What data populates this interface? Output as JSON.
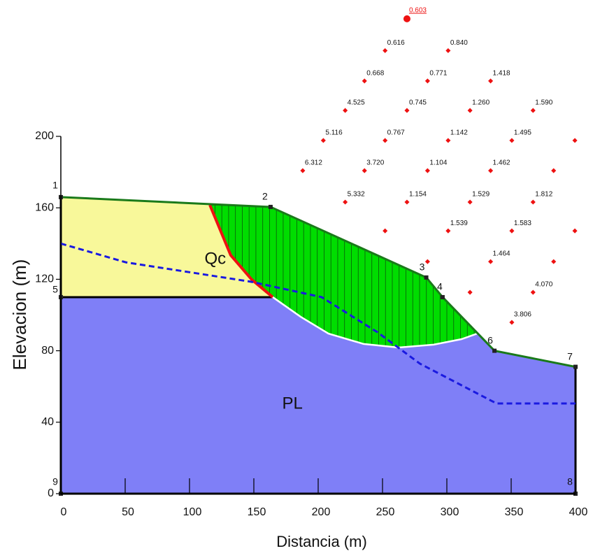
{
  "chart_data": {
    "type": "slope",
    "xlabel": "Distancia (m)",
    "ylabel": "Elevacion (m)",
    "xlim": [
      0,
      400
    ],
    "ylim": [
      0,
      200
    ],
    "xticks": [
      0,
      50,
      100,
      150,
      200,
      250,
      300,
      350,
      400
    ],
    "yticks": [
      0,
      40,
      80,
      120,
      160,
      200
    ],
    "materials": [
      {
        "name": "PL",
        "color": "#7f7ff7",
        "label_at": [
          180,
          50
        ],
        "polygon": [
          [
            0,
            0
          ],
          [
            0,
            166
          ],
          [
            163,
            160.5
          ],
          [
            284,
            121
          ],
          [
            296.7,
            110
          ],
          [
            337,
            80
          ],
          [
            400,
            71
          ],
          [
            400,
            0
          ]
        ]
      },
      {
        "name": "Qc",
        "color": "#f8f89a",
        "label_at": [
          120,
          131
        ],
        "polygon": [
          [
            0,
            110
          ],
          [
            0,
            166
          ],
          [
            163,
            160.5
          ],
          [
            165,
            110
          ]
        ]
      }
    ],
    "vertices": [
      {
        "label": "1",
        "x": 0,
        "y": 166
      },
      {
        "label": "2",
        "x": 163,
        "y": 160.5
      },
      {
        "label": "3",
        "x": 284,
        "y": 121
      },
      {
        "label": "4",
        "x": 296.7,
        "y": 110
      },
      {
        "label": "5",
        "x": 0,
        "y": 110
      },
      {
        "label": "6",
        "x": 337,
        "y": 80
      },
      {
        "label": "7",
        "x": 400,
        "y": 71
      },
      {
        "label": "8",
        "x": 400,
        "y": 0
      },
      {
        "label": "9",
        "x": 0,
        "y": 0
      }
    ],
    "failure_color": "#00dd00",
    "slip_surface": {
      "x": [
        115.8,
        132,
        148.4,
        164.7,
        186.4,
        208,
        235.3,
        262.5,
        289.7,
        311.4,
        324
      ],
      "y": [
        161.6,
        133.5,
        119.8,
        110,
        99,
        89.6,
        83.8,
        81.8,
        83.4,
        86.5,
        89.7
      ]
    },
    "slip_color": "#ee1111",
    "water_table": {
      "color": "#1a1ae0",
      "x": [
        0,
        50.5,
        148,
        202.7,
        246,
        279,
        338.6,
        400
      ],
      "y": [
        140,
        129.5,
        118.6,
        110,
        90.4,
        72.8,
        50.5,
        50.5
      ]
    },
    "minimum": {
      "x": 269,
      "y": 265.8,
      "label": "0.603"
    },
    "grid_color": "#ee1111",
    "grid_centers": [
      {
        "x": 252,
        "y": 248,
        "label": "0.616"
      },
      {
        "x": 301,
        "y": 248,
        "label": "0.840"
      },
      {
        "x": 236,
        "y": 231,
        "label": "0.668"
      },
      {
        "x": 285,
        "y": 231,
        "label": "0.771"
      },
      {
        "x": 334,
        "y": 231,
        "label": "1.418"
      },
      {
        "x": 221,
        "y": 214.5,
        "label": "4.525"
      },
      {
        "x": 269,
        "y": 214.5,
        "label": "0.745"
      },
      {
        "x": 318,
        "y": 214.5,
        "label": "1.260"
      },
      {
        "x": 367,
        "y": 214.5,
        "label": "1.590"
      },
      {
        "x": 204,
        "y": 197.7,
        "label": "5.116"
      },
      {
        "x": 252,
        "y": 197.7,
        "label": "0.767"
      },
      {
        "x": 301,
        "y": 197.7,
        "label": "1.142"
      },
      {
        "x": 350.5,
        "y": 197.7,
        "label": "1.495"
      },
      {
        "x": 399.5,
        "y": 197.7,
        "label": null
      },
      {
        "x": 188,
        "y": 180.8,
        "label": "6.312"
      },
      {
        "x": 236,
        "y": 180.8,
        "label": "3.720"
      },
      {
        "x": 285,
        "y": 180.8,
        "label": "1.104"
      },
      {
        "x": 334,
        "y": 180.8,
        "label": "1.462"
      },
      {
        "x": 383,
        "y": 180.8,
        "label": null
      },
      {
        "x": 221,
        "y": 163.2,
        "label": "5.332"
      },
      {
        "x": 269,
        "y": 163.2,
        "label": "1.154"
      },
      {
        "x": 318,
        "y": 163.2,
        "label": "1.529"
      },
      {
        "x": 367,
        "y": 163.2,
        "label": "1.812"
      },
      {
        "x": 252,
        "y": 147.1,
        "label": null
      },
      {
        "x": 301,
        "y": 147.1,
        "label": "1.539"
      },
      {
        "x": 350.5,
        "y": 147.1,
        "label": "1.583"
      },
      {
        "x": 399.5,
        "y": 147.1,
        "label": null
      },
      {
        "x": 285,
        "y": 129.9,
        "label": null
      },
      {
        "x": 334,
        "y": 129.9,
        "label": "1.464"
      },
      {
        "x": 383,
        "y": 129.9,
        "label": null
      },
      {
        "x": 318,
        "y": 112.7,
        "label": null
      },
      {
        "x": 367,
        "y": 112.7,
        "label": "4.070"
      },
      {
        "x": 350.5,
        "y": 95.9,
        "label": "3.806"
      }
    ]
  }
}
